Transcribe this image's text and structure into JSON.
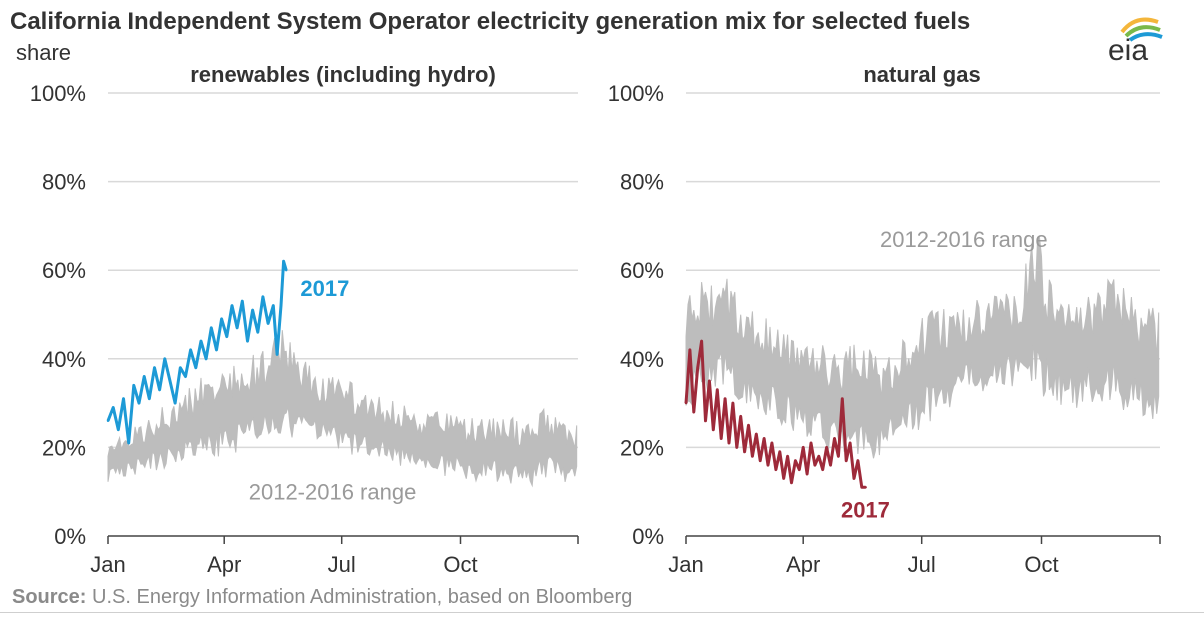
{
  "title": "California Independent System Operator electricity generation mix for selected fuels",
  "y_unit": "share",
  "logo_text": "eia",
  "source_label": "Source:",
  "source_text": "U.S. Energy Information Administration, based on Bloomberg",
  "colors": {
    "range": "#bdbdbd",
    "renewables_2017": "#1d9ad6",
    "gas_2017": "#9e2a3a",
    "grid": "#d9d9d9",
    "axis": "#444444"
  },
  "chart_data": [
    {
      "type": "area",
      "title": "renewables (including hydro)",
      "ylim": [
        0,
        100
      ],
      "yticks": [
        "0%",
        "20%",
        "40%",
        "60%",
        "80%",
        "100%"
      ],
      "ytick_values": [
        0,
        20,
        40,
        60,
        80,
        100
      ],
      "xticks": [
        "Jan",
        "Apr",
        "Jul",
        "Oct"
      ],
      "xtick_days": [
        1,
        91,
        182,
        274
      ],
      "xlim": [
        1,
        365
      ],
      "grid": true,
      "series": [
        {
          "name": "2012-2016 range",
          "kind": "band",
          "days": [
            1,
            15,
            30,
            45,
            60,
            75,
            90,
            105,
            120,
            135,
            150,
            165,
            180,
            195,
            210,
            225,
            240,
            255,
            270,
            285,
            300,
            315,
            330,
            345,
            365
          ],
          "low": [
            12,
            13,
            14,
            15,
            16,
            17,
            18,
            19,
            20,
            21,
            21,
            20,
            19,
            18,
            17,
            16,
            15,
            14,
            13,
            12,
            12,
            11,
            11,
            12,
            12
          ],
          "high": [
            21,
            23,
            27,
            30,
            34,
            36,
            38,
            40,
            43,
            47,
            42,
            38,
            36,
            34,
            32,
            30,
            29,
            28,
            28,
            27,
            27,
            27,
            28,
            30,
            25
          ]
        },
        {
          "name": "2017",
          "kind": "line",
          "days": [
            1,
            5,
            9,
            13,
            17,
            21,
            25,
            29,
            33,
            37,
            41,
            45,
            49,
            53,
            57,
            61,
            65,
            69,
            73,
            77,
            81,
            85,
            89,
            93,
            97,
            101,
            105,
            109,
            113,
            117,
            121,
            125,
            129,
            132,
            135,
            137,
            139
          ],
          "values": [
            26,
            29,
            24,
            31,
            21,
            34,
            30,
            36,
            31,
            38,
            33,
            40,
            35,
            30,
            38,
            36,
            42,
            38,
            44,
            40,
            47,
            42,
            49,
            45,
            52,
            47,
            53,
            44,
            51,
            46,
            54,
            48,
            52,
            41,
            52,
            62,
            60
          ]
        }
      ],
      "annotations": [
        "2017",
        "2012-2016 range"
      ]
    },
    {
      "type": "area",
      "title": "natural gas",
      "ylim": [
        0,
        100
      ],
      "yticks": [
        "0%",
        "20%",
        "40%",
        "60%",
        "80%",
        "100%"
      ],
      "ytick_values": [
        0,
        20,
        40,
        60,
        80,
        100
      ],
      "xticks": [
        "Jan",
        "Apr",
        "Jul",
        "Oct"
      ],
      "xtick_days": [
        1,
        91,
        182,
        274
      ],
      "xlim": [
        1,
        365
      ],
      "grid": true,
      "series": [
        {
          "name": "2012-2016 range",
          "kind": "band",
          "days": [
            1,
            15,
            30,
            45,
            60,
            75,
            90,
            105,
            120,
            135,
            150,
            165,
            180,
            195,
            210,
            225,
            240,
            255,
            270,
            285,
            300,
            315,
            330,
            345,
            365
          ],
          "low": [
            28,
            30,
            33,
            30,
            27,
            25,
            22,
            20,
            19,
            18,
            17,
            20,
            24,
            27,
            30,
            32,
            34,
            33,
            32,
            30,
            28,
            30,
            29,
            27,
            24
          ],
          "high": [
            55,
            58,
            60,
            52,
            50,
            48,
            45,
            44,
            42,
            45,
            40,
            46,
            50,
            52,
            53,
            54,
            55,
            56,
            70,
            55,
            53,
            56,
            62,
            54,
            52
          ]
        },
        {
          "name": "2017",
          "kind": "line",
          "days": [
            1,
            4,
            7,
            10,
            13,
            16,
            19,
            22,
            25,
            28,
            31,
            34,
            37,
            40,
            43,
            46,
            49,
            52,
            55,
            58,
            61,
            64,
            67,
            70,
            73,
            76,
            79,
            82,
            85,
            88,
            91,
            94,
            97,
            100,
            103,
            106,
            109,
            112,
            115,
            118,
            121,
            124,
            127,
            130,
            133,
            136,
            139
          ],
          "values": [
            30,
            42,
            28,
            38,
            44,
            26,
            35,
            24,
            33,
            22,
            31,
            21,
            30,
            20,
            27,
            19,
            25,
            18,
            23,
            17,
            22,
            16,
            21,
            15,
            19,
            13,
            18,
            12,
            17,
            15,
            20,
            14,
            21,
            16,
            18,
            15,
            20,
            16,
            22,
            18,
            31,
            17,
            21,
            13,
            17,
            11,
            11
          ]
        }
      ],
      "annotations": [
        "2017",
        "2012-2016 range"
      ]
    }
  ]
}
